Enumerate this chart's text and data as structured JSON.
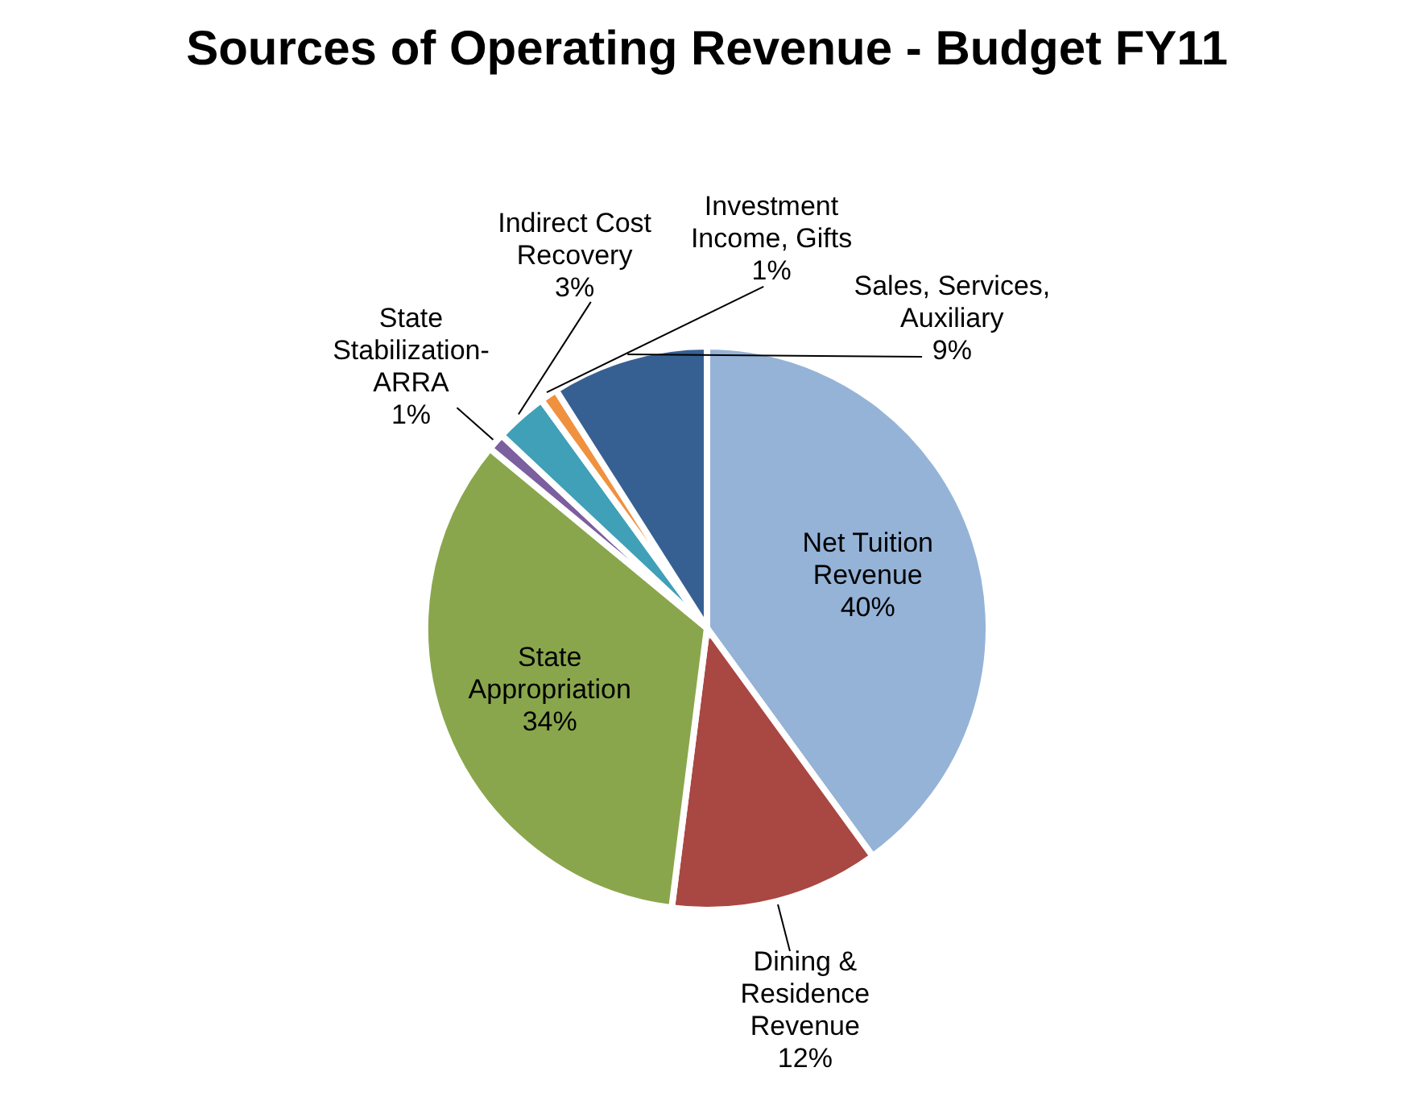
{
  "chart_data": {
    "type": "pie",
    "title": "Sources of Operating Revenue - Budget FY11",
    "categories": [
      "Net Tuition Revenue",
      "Dining & Residence Revenue",
      "State Appropriation",
      "State Stabilization-ARRA",
      "Indirect Cost Recovery",
      "Investment Income, Gifts",
      "Sales, Services, Auxiliary"
    ],
    "values": [
      40,
      12,
      34,
      1,
      3,
      1,
      9
    ],
    "colors": [
      "#95b3d7",
      "#a94743",
      "#8aa64c",
      "#7c5f9e",
      "#3fa0b8",
      "#f0913f",
      "#376092"
    ],
    "value_labels": [
      "40%",
      "12%",
      "34%",
      "1%",
      "3%",
      "1%",
      "9%"
    ]
  }
}
